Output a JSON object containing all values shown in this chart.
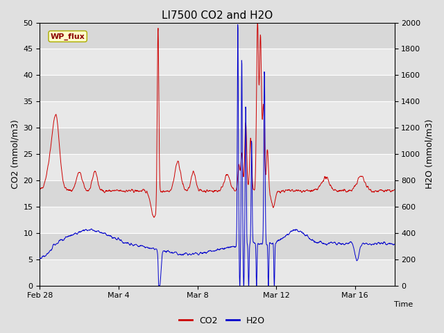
{
  "title": "LI7500 CO2 and H2O",
  "xlabel": "Time",
  "ylabel_left": "CO2 (mmol/m3)",
  "ylabel_right": "H2O (mmol/m3)",
  "ylim_left": [
    0,
    50
  ],
  "ylim_right": [
    0,
    2000
  ],
  "yticks_left": [
    0,
    5,
    10,
    15,
    20,
    25,
    30,
    35,
    40,
    45,
    50
  ],
  "yticks_right": [
    0,
    200,
    400,
    600,
    800,
    1000,
    1200,
    1400,
    1600,
    1800,
    2000
  ],
  "bg_color": "#e0e0e0",
  "plot_bg_color": "#f2f2f2",
  "grid_color": "#ffffff",
  "band_color_light": "#ebebeb",
  "band_color_dark": "#d8d8d8",
  "co2_color": "#cc0000",
  "h2o_color": "#0000cc",
  "legend_label_co2": "CO2",
  "legend_label_h2o": "H2O",
  "annotation_text": "WP_flux",
  "annotation_color": "#8B0000",
  "annotation_bg": "#ffffcc",
  "annotation_border": "#aaaa00",
  "title_fontsize": 11,
  "label_fontsize": 9,
  "tick_fontsize": 8
}
